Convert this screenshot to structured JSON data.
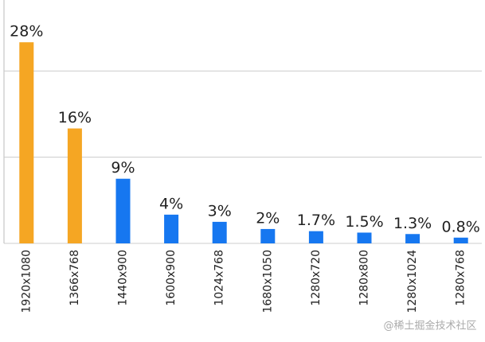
{
  "chart_data": {
    "type": "bar",
    "categories": [
      "1920x1080",
      "1366x768",
      "1440x900",
      "1600x900",
      "1024x768",
      "1680x1050",
      "1280x720",
      "1280x800",
      "1280x1024",
      "1280x768"
    ],
    "values": [
      28,
      16,
      9,
      4,
      3,
      2,
      1.7,
      1.5,
      1.3,
      0.8
    ],
    "value_labels": [
      "28%",
      "16%",
      "9%",
      "4%",
      "3%",
      "2%",
      "1.7%",
      "1.5%",
      "1.3%",
      "0.8%"
    ],
    "colors": [
      "#f5a623",
      "#f5a623",
      "#1677f0",
      "#1677f0",
      "#1677f0",
      "#1677f0",
      "#1677f0",
      "#1677f0",
      "#1677f0",
      "#1677f0"
    ],
    "ylim": [
      0,
      33
    ],
    "yticks": [
      0,
      12,
      24
    ],
    "grid": true,
    "watermark": "@稀土掘金技术社区"
  }
}
